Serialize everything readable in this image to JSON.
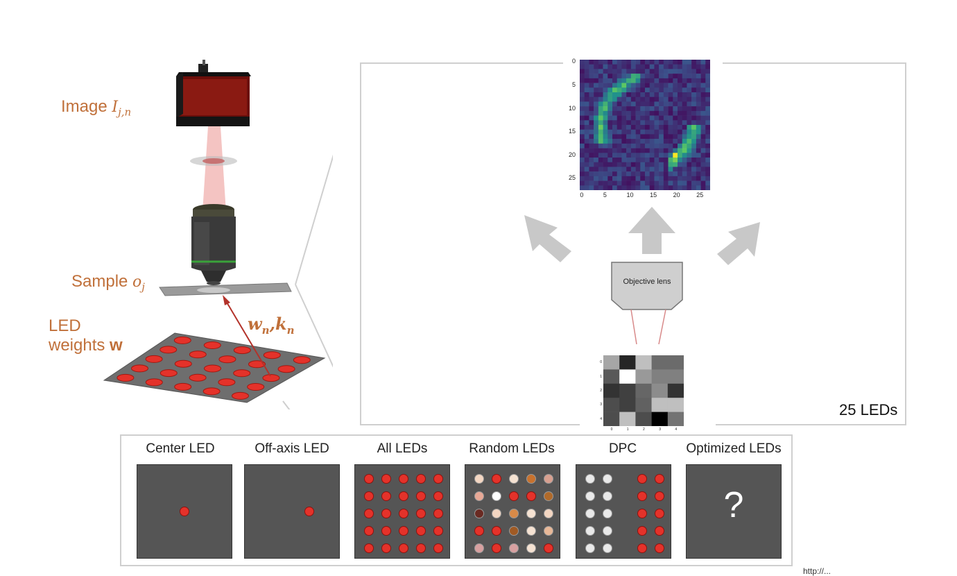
{
  "labels": {
    "image": "Image",
    "image_math": "I",
    "image_sub": "j,n",
    "sample": "Sample",
    "sample_math": "o",
    "sample_sub": "j",
    "led_line1": "LED",
    "led_line2": "weights",
    "led_bold": "w",
    "wk_w": "w",
    "wk_w_sub": "n",
    "wk_k": "k",
    "wk_k_sub": "n",
    "objective_lens": "Objective lens",
    "leds_count": "25 LEDs",
    "url_fragment": "http://..."
  },
  "patterns": [
    {
      "title": "Center LED"
    },
    {
      "title": "Off-axis LED"
    },
    {
      "title": "All LEDs"
    },
    {
      "title": "Random LEDs"
    },
    {
      "title": "DPC"
    },
    {
      "title": "Optimized LEDs",
      "glyph": "?"
    }
  ],
  "random_led_colors": [
    [
      "#f3d6c2",
      "#e4322a",
      "#f5e2d2",
      "#c8722e",
      "#d8a090"
    ],
    [
      "#e8a896",
      "#ffffff",
      "#e4322a",
      "#e4322a",
      "#b06a2a"
    ],
    [
      "#6a2a22",
      "#f3d6c2",
      "#d88a48",
      "#f5e2d2",
      "#f3d6c2"
    ],
    [
      "#e4322a",
      "#e4322a",
      "#a05a24",
      "#f5e2d2",
      "#e8b898"
    ],
    [
      "#d8a0a0",
      "#e4322a",
      "#d8a0a0",
      "#f5e2d2",
      "#e4322a"
    ]
  ],
  "heatmap": {
    "x_ticks": [
      "0",
      "5",
      "10",
      "15",
      "20",
      "25"
    ],
    "y_ticks": [
      "0",
      "5",
      "10",
      "15",
      "20",
      "25"
    ]
  },
  "led_weights_chart": {
    "ticks": [
      "0",
      "1",
      "2",
      "3",
      "4"
    ],
    "values": [
      [
        0.65,
        0.15,
        0.75,
        0.42,
        0.42
      ],
      [
        0.35,
        1.0,
        0.6,
        0.5,
        0.5
      ],
      [
        0.2,
        0.25,
        0.4,
        0.55,
        0.2
      ],
      [
        0.3,
        0.25,
        0.38,
        0.75,
        0.75
      ],
      [
        0.3,
        0.75,
        0.3,
        0.0,
        0.45
      ]
    ]
  }
}
